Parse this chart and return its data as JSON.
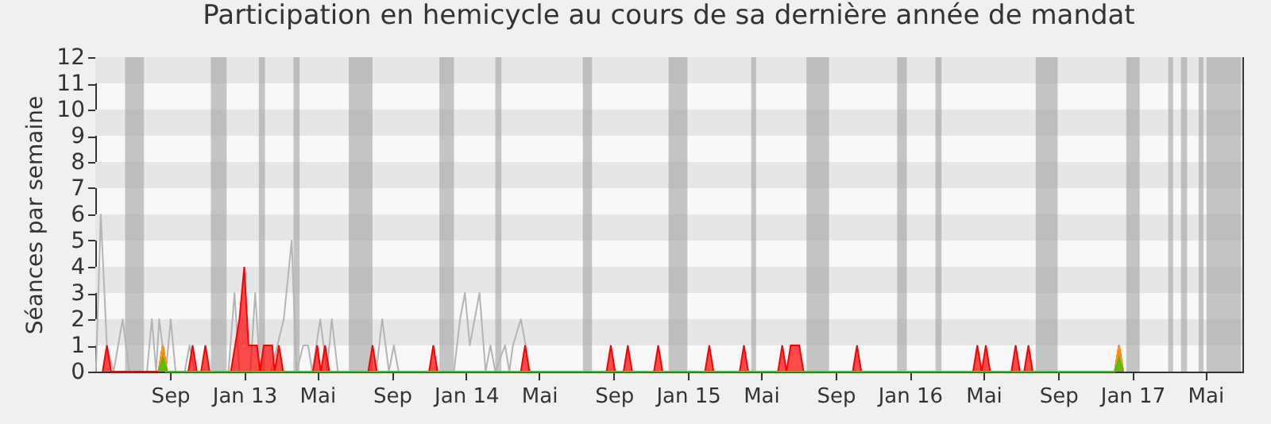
{
  "chart_data": {
    "type": "area",
    "title": "Participation en hemicycle au cours de sa dernière année de mandat",
    "ylabel": "Séances par semaine",
    "xlim": [
      "2012-05-01",
      "2017-07-01"
    ],
    "ylim": [
      0,
      12
    ],
    "xticks": [
      {
        "value": "2012-09-01",
        "label": "Sep"
      },
      {
        "value": "2013-01-01",
        "label": "Jan 13"
      },
      {
        "value": "2013-05-01",
        "label": "Mai"
      },
      {
        "value": "2013-09-01",
        "label": "Sep"
      },
      {
        "value": "2014-01-01",
        "label": "Jan 14"
      },
      {
        "value": "2014-05-01",
        "label": "Mai"
      },
      {
        "value": "2014-09-01",
        "label": "Sep"
      },
      {
        "value": "2015-01-01",
        "label": "Jan 15"
      },
      {
        "value": "2015-05-01",
        "label": "Mai"
      },
      {
        "value": "2015-09-01",
        "label": "Sep"
      },
      {
        "value": "2016-01-01",
        "label": "Jan 16"
      },
      {
        "value": "2016-05-01",
        "label": "Mai"
      },
      {
        "value": "2016-09-01",
        "label": "Sep"
      },
      {
        "value": "2017-01-01",
        "label": "Jan 17"
      },
      {
        "value": "2017-05-01",
        "label": "Mai"
      }
    ],
    "yticks": [
      0,
      1,
      2,
      3,
      4,
      5,
      6,
      7,
      8,
      9,
      10,
      11,
      12
    ],
    "grid": false,
    "bands": [
      {
        "axis": "y",
        "from": 1,
        "to": 2,
        "color": "#e6e6e6"
      },
      {
        "axis": "y",
        "from": 3,
        "to": 4,
        "color": "#e6e6e6"
      },
      {
        "axis": "y",
        "from": 5,
        "to": 6,
        "color": "#e6e6e6"
      },
      {
        "axis": "y",
        "from": 7,
        "to": 8,
        "color": "#e6e6e6"
      },
      {
        "axis": "y",
        "from": 9,
        "to": 10,
        "color": "#e6e6e6"
      },
      {
        "axis": "y",
        "from": 11,
        "to": 12,
        "color": "#e6e6e6"
      },
      {
        "axis": "x",
        "from": "2012-06-19",
        "to": "2012-07-20",
        "color": "#a8a8a8"
      },
      {
        "axis": "x",
        "from": "2012-11-07",
        "to": "2012-12-03",
        "color": "#a8a8a8"
      },
      {
        "axis": "x",
        "from": "2013-01-25",
        "to": "2013-02-04",
        "color": "#a8a8a8"
      },
      {
        "axis": "x",
        "from": "2013-03-23",
        "to": "2013-04-02",
        "color": "#a8a8a8"
      },
      {
        "axis": "x",
        "from": "2013-06-22",
        "to": "2013-07-31",
        "color": "#a8a8a8"
      },
      {
        "axis": "x",
        "from": "2013-11-18",
        "to": "2013-12-12",
        "color": "#a8a8a8"
      },
      {
        "axis": "x",
        "from": "2014-02-18",
        "to": "2014-02-28",
        "color": "#a8a8a8"
      },
      {
        "axis": "x",
        "from": "2014-07-12",
        "to": "2014-07-27",
        "color": "#a8a8a8"
      },
      {
        "axis": "x",
        "from": "2014-11-30",
        "to": "2014-12-31",
        "color": "#a8a8a8"
      },
      {
        "axis": "x",
        "from": "2015-04-15",
        "to": "2015-04-23",
        "color": "#a8a8a8"
      },
      {
        "axis": "x",
        "from": "2015-07-15",
        "to": "2015-08-21",
        "color": "#a8a8a8"
      },
      {
        "axis": "x",
        "from": "2015-12-11",
        "to": "2015-12-27",
        "color": "#a8a8a8"
      },
      {
        "axis": "x",
        "from": "2016-02-12",
        "to": "2016-02-22",
        "color": "#a8a8a8"
      },
      {
        "axis": "x",
        "from": "2016-07-26",
        "to": "2016-08-31",
        "color": "#a8a8a8"
      },
      {
        "axis": "x",
        "from": "2016-12-22",
        "to": "2017-01-13",
        "color": "#a8a8a8"
      },
      {
        "axis": "x",
        "from": "2017-03-01",
        "to": "2017-03-09",
        "color": "#a8a8a8"
      },
      {
        "axis": "x",
        "from": "2017-03-22",
        "to": "2017-04-01",
        "color": "#a8a8a8"
      },
      {
        "axis": "x",
        "from": "2017-04-20",
        "to": "2017-04-28",
        "color": "#a8a8a8"
      },
      {
        "axis": "x",
        "from": "2017-05-03",
        "to": "2017-06-29",
        "color": "#a8a8a8"
      }
    ],
    "series": [
      {
        "type": "line",
        "color": "#b4b4b4",
        "x": [
          "2012-05-02",
          "2012-05-10",
          "2012-05-20",
          "2012-05-31",
          "2012-06-15",
          "2012-06-26",
          "2012-07-25",
          "2012-08-02",
          "2012-08-09",
          "2012-08-14",
          "2012-08-25",
          "2012-09-02",
          "2012-09-10",
          "2012-09-25",
          "2012-10-03",
          "2012-10-11",
          "2012-12-06",
          "2012-12-16",
          "2012-12-24",
          "2013-01-11",
          "2013-01-19",
          "2013-01-27",
          "2013-02-14",
          "2013-03-07",
          "2013-03-20",
          "2013-03-28",
          "2013-04-08",
          "2013-04-16",
          "2013-04-23",
          "2013-05-06",
          "2013-05-17",
          "2013-05-25",
          "2013-06-04",
          "2013-08-06",
          "2013-08-16",
          "2013-08-27",
          "2013-09-04",
          "2013-09-12",
          "2013-12-12",
          "2013-12-22",
          "2013-12-30",
          "2014-01-07",
          "2014-01-23",
          "2014-02-02",
          "2014-02-10",
          "2014-02-18",
          "2014-03-06",
          "2014-03-13",
          "2014-03-19",
          "2014-04-01",
          "2014-04-09",
          "2014-04-16"
        ],
        "values": [
          0,
          6,
          1,
          0,
          2,
          0,
          0,
          2,
          0,
          2,
          0,
          2,
          0,
          0,
          1,
          0,
          0,
          3,
          0,
          0,
          3,
          0,
          0,
          2,
          5,
          0,
          1,
          1,
          0,
          2,
          0,
          2,
          0,
          0,
          2,
          0,
          1,
          0,
          0,
          2,
          3,
          1,
          3,
          0,
          1,
          0,
          1,
          0,
          1,
          2,
          1,
          0
        ]
      },
      {
        "color": "#ff0000",
        "x": [
          "2012-05-13",
          "2012-05-20",
          "2012-05-27",
          "2012-08-13",
          "2012-08-20",
          "2012-08-27",
          "2012-10-01",
          "2012-10-08",
          "2012-10-15",
          "2012-10-22",
          "2012-10-29",
          "2012-11-05",
          "2012-12-10",
          "2012-12-17",
          "2012-12-24",
          "2013-01-01",
          "2013-01-08",
          "2013-01-15",
          "2013-01-22",
          "2013-01-27",
          "2013-02-02",
          "2013-02-09",
          "2013-02-16",
          "2013-02-20",
          "2013-02-27",
          "2013-03-06",
          "2013-04-24",
          "2013-05-01",
          "2013-05-07",
          "2013-05-14",
          "2013-05-21",
          "2013-07-24",
          "2013-07-31",
          "2013-08-07",
          "2013-11-01",
          "2013-11-08",
          "2013-11-15",
          "2014-04-01",
          "2014-04-08",
          "2014-04-15",
          "2014-08-20",
          "2014-08-27",
          "2014-09-03",
          "2014-09-17",
          "2014-09-24",
          "2014-10-01",
          "2014-11-06",
          "2014-11-13",
          "2014-11-20",
          "2015-01-29",
          "2015-02-05",
          "2015-02-12",
          "2015-03-27",
          "2015-04-03",
          "2015-04-10",
          "2015-05-29",
          "2015-06-05",
          "2015-06-12",
          "2015-06-19",
          "2015-07-03",
          "2015-07-10",
          "2015-09-29",
          "2015-10-06",
          "2015-10-13",
          "2016-04-14",
          "2016-04-21",
          "2016-04-28",
          "2016-05-05",
          "2016-05-12",
          "2016-06-16",
          "2016-06-23",
          "2016-06-30",
          "2016-07-07",
          "2016-07-14",
          "2016-07-21",
          "2016-12-03",
          "2016-12-10",
          "2016-12-17"
        ],
        "values": [
          0,
          1,
          0,
          0,
          1,
          0,
          0,
          1,
          0,
          0,
          1,
          0,
          0,
          1,
          2,
          4,
          1,
          1,
          1,
          0,
          1,
          1,
          1,
          0,
          1,
          0,
          0,
          1,
          0,
          1,
          0,
          0,
          1,
          0,
          0,
          1,
          0,
          0,
          1,
          0,
          0,
          1,
          0,
          0,
          1,
          0,
          0,
          1,
          0,
          0,
          1,
          0,
          0,
          1,
          0,
          0,
          1,
          0,
          1,
          1,
          0,
          0,
          1,
          0,
          0,
          1,
          0,
          1,
          0,
          0,
          1,
          0,
          0,
          1,
          0,
          0,
          1,
          0
        ]
      },
      {
        "color": "#ff9900",
        "x": [
          "2012-08-13",
          "2012-08-20",
          "2012-08-27",
          "2016-12-03",
          "2016-12-10",
          "2016-12-17"
        ],
        "values": [
          0,
          1,
          0,
          0,
          1,
          0
        ]
      },
      {
        "color": "#33cc00",
        "x": [
          "2012-08-13",
          "2012-08-20",
          "2012-08-27",
          "2016-12-03",
          "2016-12-10",
          "2016-12-17"
        ],
        "values": [
          0,
          0.5,
          0,
          0,
          0.5,
          0
        ]
      }
    ]
  }
}
